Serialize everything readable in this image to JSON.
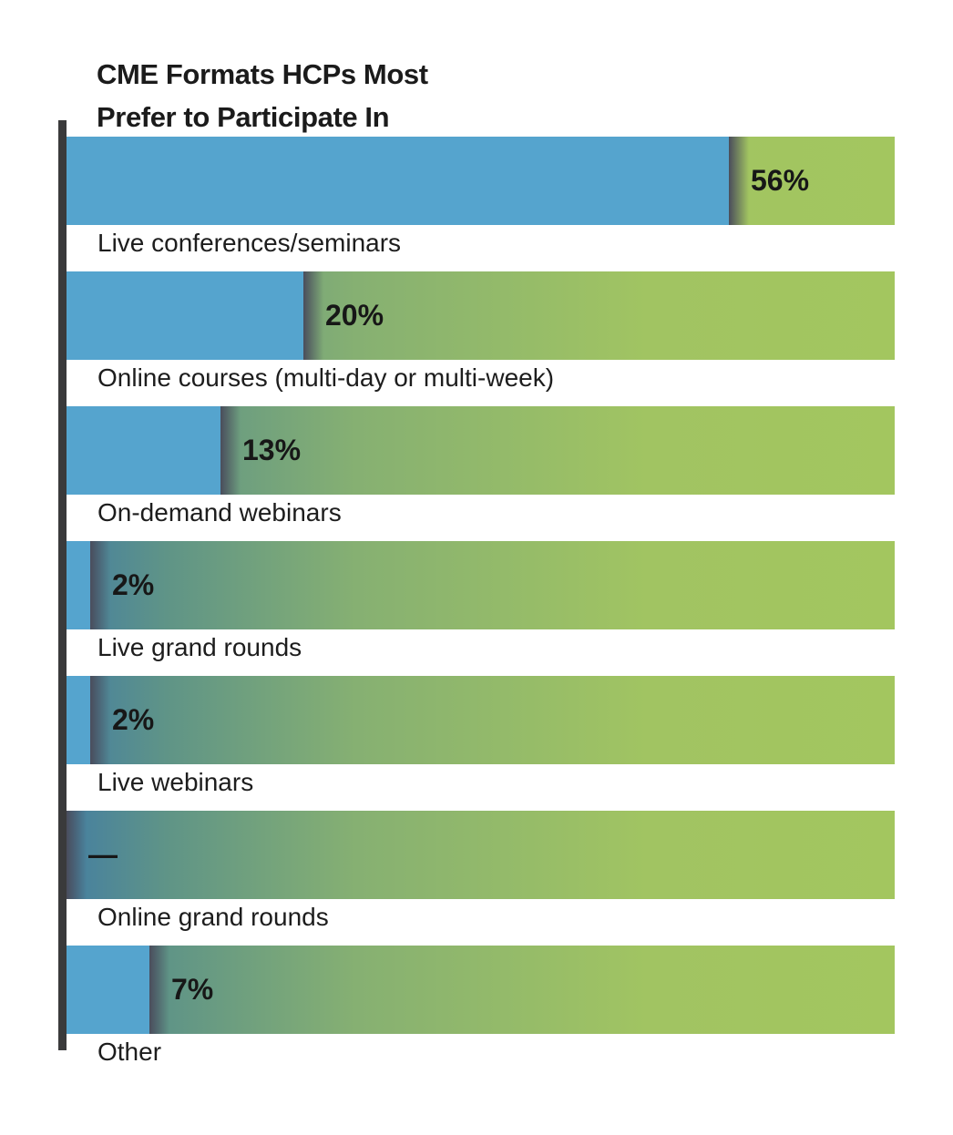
{
  "chart_data": {
    "type": "bar",
    "orientation": "horizontal",
    "title_lines": [
      "CME Formats HCPs Most",
      "Prefer to Participate In"
    ],
    "categories": [
      "Live conferences/seminars",
      "Online courses (multi-day or multi-week)",
      "On-demand webinars",
      "Live grand rounds",
      "Live webinars",
      "Online grand rounds",
      "Other"
    ],
    "values": [
      56,
      20,
      13,
      2,
      2,
      0,
      7
    ],
    "value_labels": [
      "56%",
      "20%",
      "13%",
      "2%",
      "2%",
      "—",
      "7%"
    ],
    "xlim": [
      0,
      70
    ],
    "grid": false,
    "legend": "none"
  },
  "colors": {
    "fill": "#55a4ce",
    "track_start": "#457fa1",
    "track_end": "#a3c65f",
    "axis": "#3a3a3b",
    "text": "#1b1b1b"
  }
}
